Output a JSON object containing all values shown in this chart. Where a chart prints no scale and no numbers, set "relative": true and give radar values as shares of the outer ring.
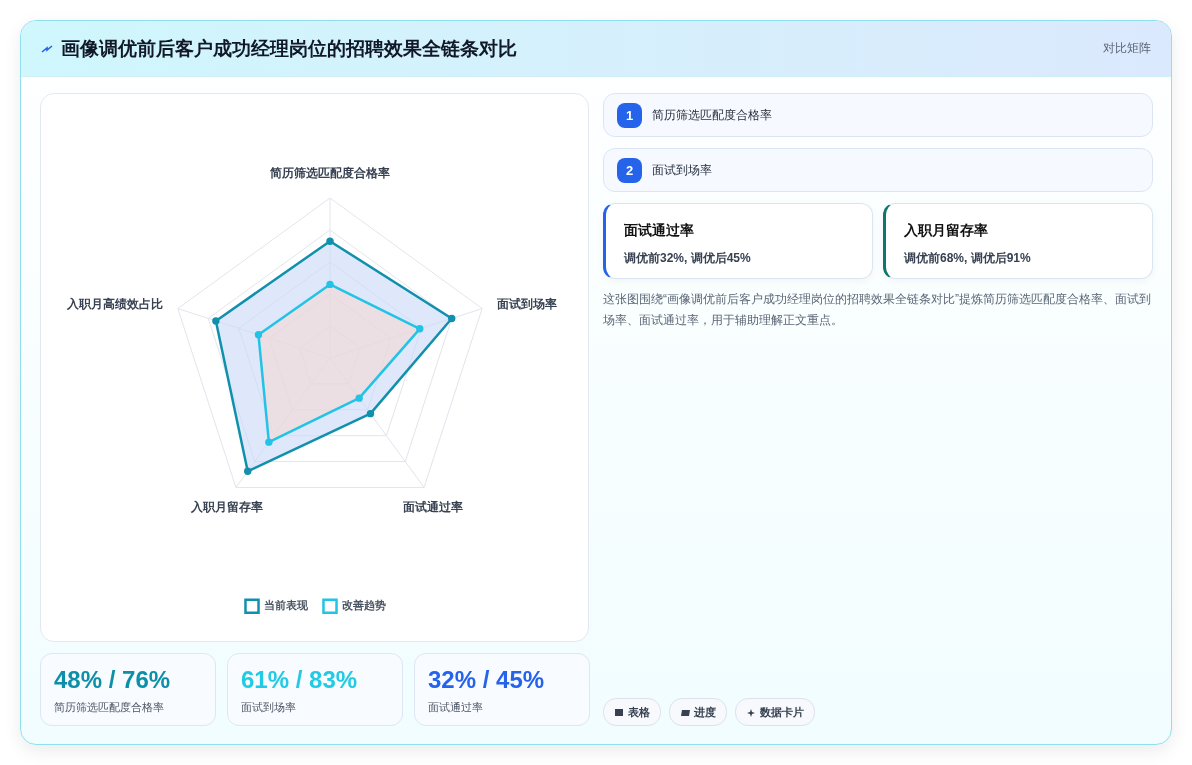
{
  "chart_data": [
    {
      "type": "radar",
      "categories": [
        "简历筛选匹配度合格率",
        "面试到场率",
        "面试通过率",
        "入职月留存率",
        "入职月高绩效占比"
      ],
      "relative": true,
      "grid": true,
      "legend": "bottom",
      "marker": "circle",
      "series": [
        {
          "name": "当前表现",
          "color": "#1190ae",
          "values": [
            0.73,
            0.8,
            0.43,
            0.875,
            0.75
          ]
        },
        {
          "name": "改善趋势",
          "color": "#22c3e6",
          "values": [
            0.46,
            0.59,
            0.31,
            0.65,
            0.47
          ]
        }
      ]
    },
    {
      "type": "other",
      "title": "画像调优前后客户成功经理岗位的招聘效果全链条对比",
      "subtitle": "对比矩阵",
      "annotations": [
        "1",
        "简历筛选匹配度合格率",
        "2",
        "面试到场率",
        "面试通过率",
        "调优前32%, 调优后45%",
        "入职月留存率",
        "调优前68%, 调优后91%",
        "这张图围绕“画像调优前后客户成功经理岗位的招聘效果全链条对比”提炼简历筛选匹配度合格率、面试到场率、面试通过率，用于辅助理解正文重点。",
        "48% / 76%",
        "简历筛选匹配度合格率",
        "61% / 83%",
        "面试到场率",
        "32% / 45%",
        "面试通过率",
        "表格",
        "进度",
        "数据卡片"
      ]
    }
  ]
}
